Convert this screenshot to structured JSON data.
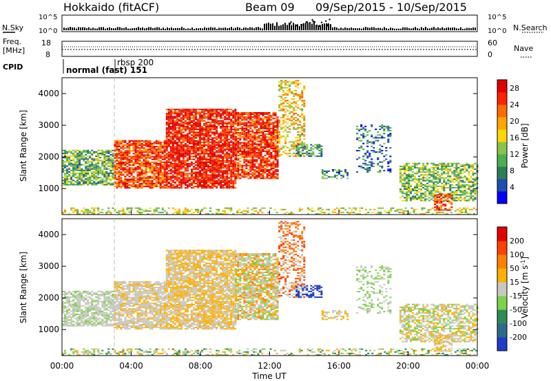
{
  "header": {
    "station": "Hokkaido (fitACF)",
    "beam": "Beam 09",
    "daterange": "09/Sep/2015 - 10/Sep/2015"
  },
  "nsky_panel": {
    "label_left": "N.Sky",
    "label_right": "N.Search",
    "ticks_left": [
      "10^5",
      "10^0"
    ],
    "ticks_right": [
      "10^5",
      "10^0"
    ]
  },
  "freq_panel": {
    "label_left": "Freq.",
    "unit_left": "[MHz]",
    "label_right": "Nave",
    "ticks_left": [
      "18",
      "8"
    ],
    "ticks_right": [
      "60",
      "0"
    ]
  },
  "cpid_panel": {
    "label": "CPID",
    "modes": [
      {
        "name": "normal (fast) 151",
        "start_hour": 0
      },
      {
        "name": "rbsp 200",
        "start_hour": 3.1
      }
    ]
  },
  "chart_data": [
    {
      "type": "heatmap",
      "panel": "power",
      "ylabel": "Slant Range [km]",
      "xlabel": "Time UT",
      "x_ticks": [
        "00:00",
        "04:00",
        "08:00",
        "12:00",
        "16:00",
        "20:00",
        "00:00"
      ],
      "xlim_hours": [
        0,
        24
      ],
      "y_ticks": [
        1000,
        2000,
        3000,
        4000
      ],
      "ylim_km": [
        180,
        4500
      ],
      "colorbar": {
        "label": "Power [dB]",
        "ticks": [
          28,
          24,
          20,
          16,
          12,
          8,
          4
        ],
        "range": [
          0,
          30
        ],
        "colors": [
          "#0000ff",
          "#1c4fb0",
          "#2e7d5a",
          "#4caf50",
          "#8bc34a",
          "#ffd700",
          "#ffa500",
          "#ff6a00",
          "#ff2200",
          "#e00000"
        ]
      }
    },
    {
      "type": "heatmap",
      "panel": "velocity",
      "ylabel": "Slant Range [km]",
      "xlabel": "Time UT",
      "x_ticks": [
        "00:00",
        "04:00",
        "08:00",
        "12:00",
        "16:00",
        "20:00",
        "00:00"
      ],
      "xlim_hours": [
        0,
        24
      ],
      "y_ticks": [
        1000,
        2000,
        3000,
        4000
      ],
      "ylim_km": [
        180,
        4500
      ],
      "colorbar": {
        "label": "Velocity [m s-1]",
        "ticks": [
          200,
          100,
          50,
          15,
          -15,
          -50,
          -100,
          -200
        ],
        "colors": [
          "#1e3cc8",
          "#2e6a8a",
          "#2e8b57",
          "#7cd34a",
          "#c8c8c0",
          "#ffb000",
          "#ff8000",
          "#ff4000",
          "#e00000"
        ]
      }
    }
  ]
}
